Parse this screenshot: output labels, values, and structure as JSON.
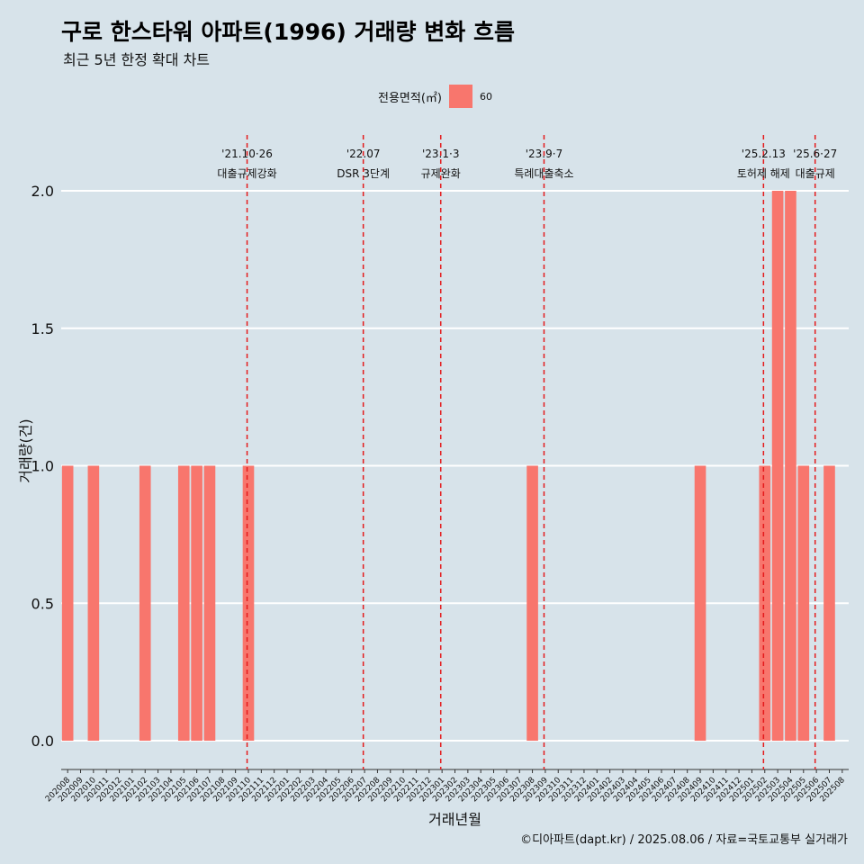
{
  "title": "구로 한스타워 아파트(1996) 거래량 변화 흐름",
  "subtitle": "최근 5년 한정 확대 차트",
  "legend": {
    "title": "전용면적(㎡)",
    "label": "60",
    "color": "#f8766d"
  },
  "caption": "©디아파트(dapt.kr) / 2025.08.06 / 자료=국토교통부 실거래가",
  "chart_data": {
    "type": "bar",
    "xlabel": "거래년월",
    "ylabel": "거래량(건)",
    "ylim": [
      0,
      2.2
    ],
    "yticks": [
      0.0,
      0.5,
      1.0,
      1.5,
      2.0
    ],
    "ytick_labels": [
      "0.0",
      "0.5",
      "1.0",
      "1.5",
      "2.0"
    ],
    "grid": true,
    "legend_position": "top",
    "categories": [
      "202008",
      "202009",
      "202010",
      "202011",
      "202012",
      "202101",
      "202102",
      "202103",
      "202104",
      "202105",
      "202106",
      "202107",
      "202108",
      "202109",
      "202110",
      "202111",
      "202112",
      "202201",
      "202202",
      "202203",
      "202204",
      "202205",
      "202206",
      "202207",
      "202208",
      "202209",
      "202210",
      "202211",
      "202212",
      "202301",
      "202302",
      "202303",
      "202304",
      "202305",
      "202306",
      "202307",
      "202308",
      "202309",
      "202310",
      "202311",
      "202312",
      "202401",
      "202402",
      "202403",
      "202404",
      "202405",
      "202406",
      "202407",
      "202408",
      "202409",
      "202410",
      "202411",
      "202412",
      "202501",
      "202502",
      "202503",
      "202504",
      "202505",
      "202506",
      "202507",
      "202508"
    ],
    "series": [
      {
        "name": "60",
        "color": "#f8766d",
        "values": [
          1,
          0,
          1,
          0,
          0,
          0,
          1,
          0,
          0,
          1,
          1,
          1,
          0,
          0,
          1,
          0,
          0,
          0,
          0,
          0,
          0,
          0,
          0,
          0,
          0,
          0,
          0,
          0,
          0,
          0,
          0,
          0,
          0,
          0,
          0,
          0,
          1,
          0,
          0,
          0,
          0,
          0,
          0,
          0,
          0,
          0,
          0,
          0,
          0,
          1,
          0,
          0,
          0,
          0,
          1,
          2,
          2,
          1,
          0,
          1,
          0
        ]
      }
    ],
    "annotations": [
      {
        "x": 14.4,
        "line1": "'21.10·26",
        "line2": "대출규제강화"
      },
      {
        "x": 23.4,
        "line1": "'22.07",
        "line2": "DSR 3단계"
      },
      {
        "x": 29.4,
        "line1": "'23.1·3",
        "line2": "규제완화"
      },
      {
        "x": 37.4,
        "line1": "'23.9·7",
        "line2": "특례대출축소"
      },
      {
        "x": 54.4,
        "line1": "'25.2.13",
        "line2": "토허제 해제"
      },
      {
        "x": 58.4,
        "line1": "'25.6·27",
        "line2": "대출규제"
      }
    ],
    "annotation_color": "#e41a1c"
  }
}
